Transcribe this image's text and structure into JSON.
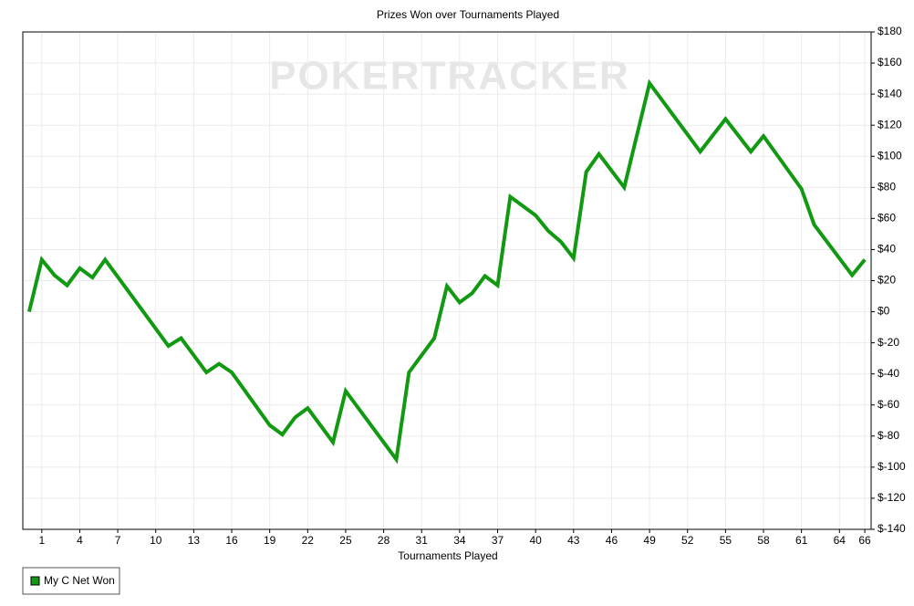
{
  "chart_data": {
    "type": "line",
    "title": "Prizes Won over Tournaments Played",
    "watermark": "POKERTRACKER",
    "x_label": "Tournaments Played",
    "x": [
      0,
      1,
      2,
      3,
      4,
      5,
      6,
      11,
      12,
      14,
      15,
      16,
      19,
      20,
      21,
      22,
      24,
      25,
      29,
      30,
      32,
      33,
      34,
      35,
      36,
      37,
      38,
      40,
      41,
      42,
      43,
      44,
      45,
      47,
      49,
      53,
      55,
      57,
      58,
      61,
      62,
      65,
      66
    ],
    "series": [
      {
        "name": "My C Net Won",
        "color": "#119911",
        "values": [
          0,
          33.5,
          23.5,
          17,
          28,
          22,
          33.5,
          -22,
          -17,
          -39,
          -33.5,
          -39,
          -73,
          -79,
          -68,
          -62,
          -84,
          -51,
          -95,
          -39,
          -17,
          16.5,
          6,
          12,
          23,
          17,
          74,
          62,
          52,
          45,
          34.5,
          90,
          101.5,
          80,
          147,
          103,
          124,
          103,
          113,
          79,
          56,
          23.5,
          33.5
        ]
      }
    ],
    "xlim": [
      -0.5,
      66.5
    ],
    "xticks": [
      1,
      4,
      7,
      10,
      13,
      16,
      19,
      22,
      25,
      28,
      31,
      34,
      37,
      40,
      43,
      46,
      49,
      52,
      55,
      58,
      61,
      64,
      66
    ],
    "ylim": [
      -140,
      180
    ],
    "yticks": [
      {
        "value": -140,
        "label": "$-140"
      },
      {
        "value": -120,
        "label": "$-120"
      },
      {
        "value": -100,
        "label": "$-100"
      },
      {
        "value": -80,
        "label": "$-80"
      },
      {
        "value": -60,
        "label": "$-60"
      },
      {
        "value": -40,
        "label": "$-40"
      },
      {
        "value": -20,
        "label": "$-20"
      },
      {
        "value": 0,
        "label": "$0"
      },
      {
        "value": 20,
        "label": "$20"
      },
      {
        "value": 40,
        "label": "$40"
      },
      {
        "value": 60,
        "label": "$60"
      },
      {
        "value": 80,
        "label": "$80"
      },
      {
        "value": 100,
        "label": "$100"
      },
      {
        "value": 120,
        "label": "$120"
      },
      {
        "value": 140,
        "label": "$140"
      },
      {
        "value": 160,
        "label": "$160"
      },
      {
        "value": 180,
        "label": "$180"
      }
    ],
    "grid": true,
    "legend": "bottom-left"
  }
}
